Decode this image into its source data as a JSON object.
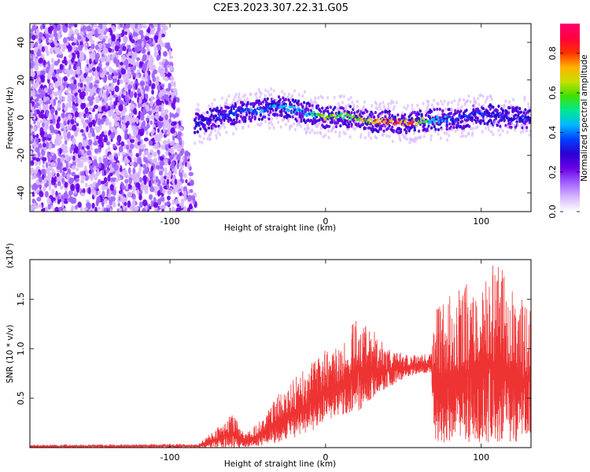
{
  "figure": {
    "title": "C2E3.2023.307.22.31.G05"
  },
  "colors": {
    "snr_line": "#ee3333",
    "frame": "#000000",
    "colormap": [
      "#ffffff",
      "#d8b8ff",
      "#a060ff",
      "#6a00e8",
      "#2a00d0",
      "#0040ff",
      "#00b8ff",
      "#00e890",
      "#40e000",
      "#c8e000",
      "#ffb000",
      "#ff3000",
      "#ff0040",
      "#ff0070"
    ]
  },
  "chart_data": [
    {
      "type": "heatmap",
      "name": "spectrogram",
      "xlabel": "Height of straight line (km)",
      "ylabel": "Frequency (Hz)",
      "xlim": [
        -190,
        132
      ],
      "ylim": [
        -50,
        50
      ],
      "xticks": [
        -100,
        0,
        100
      ],
      "xtick_labels": [
        "-100",
        "0",
        "100"
      ],
      "yticks": [
        -40,
        -20,
        0,
        20,
        40
      ],
      "ytick_labels": [
        "-40",
        "-20",
        "0",
        "20",
        "40"
      ],
      "noise_region_x": [
        -190,
        -82
      ],
      "noise_edge_x": [
        -103,
        -82
      ],
      "signal_track": [
        {
          "x": -82,
          "y": -3
        },
        {
          "x": -70,
          "y": 0
        },
        {
          "x": -55,
          "y": 3
        },
        {
          "x": -40,
          "y": 4
        },
        {
          "x": -30,
          "y": 6
        },
        {
          "x": -20,
          "y": 4
        },
        {
          "x": -10,
          "y": 2
        },
        {
          "x": 0,
          "y": 0
        },
        {
          "x": 10,
          "y": 1
        },
        {
          "x": 20,
          "y": 0
        },
        {
          "x": 30,
          "y": -2
        },
        {
          "x": 40,
          "y": -2
        },
        {
          "x": 50,
          "y": -3
        },
        {
          "x": 60,
          "y": -2
        },
        {
          "x": 70,
          "y": -1
        },
        {
          "x": 80,
          "y": -1
        },
        {
          "x": 90,
          "y": 0
        },
        {
          "x": 100,
          "y": 2
        },
        {
          "x": 110,
          "y": 1
        },
        {
          "x": 120,
          "y": 0
        },
        {
          "x": 132,
          "y": 0
        }
      ],
      "track_peak_amplitude": [
        {
          "x": -82,
          "amp": 0.35
        },
        {
          "x": -40,
          "amp": 0.45
        },
        {
          "x": -30,
          "amp": 0.5
        },
        {
          "x": -10,
          "amp": 0.45
        },
        {
          "x": 0,
          "amp": 0.75
        },
        {
          "x": 10,
          "amp": 0.6
        },
        {
          "x": 25,
          "amp": 0.75
        },
        {
          "x": 40,
          "amp": 0.85
        },
        {
          "x": 55,
          "amp": 0.9
        },
        {
          "x": 65,
          "amp": 0.6
        },
        {
          "x": 80,
          "amp": 0.4
        },
        {
          "x": 100,
          "amp": 0.35
        },
        {
          "x": 132,
          "amp": 0.35
        }
      ],
      "colorbar": {
        "label": "Normalized spectral amplitude",
        "lim": [
          0.0,
          0.95
        ],
        "ticks": [
          0.0,
          0.2,
          0.4,
          0.6,
          0.8
        ],
        "tick_labels": [
          "0.0",
          "0.2",
          "0.4",
          "0.6",
          "0.8"
        ]
      }
    },
    {
      "type": "line",
      "name": "snr",
      "xlabel": "Height of straight line (km)",
      "ylabel": "SNR (10 * v/v)",
      "y_multiplier": "(x10",
      "y_multiplier_exp": "4",
      "y_multiplier_close": ")",
      "xlim": [
        -190,
        132
      ],
      "ylim": [
        0,
        1.9
      ],
      "xticks": [
        -100,
        0,
        100
      ],
      "xtick_labels": [
        "-100",
        "0",
        "100"
      ],
      "yticks": [
        0.5,
        1.0,
        1.5
      ],
      "ytick_labels": [
        "0.5",
        "1.0",
        "1.5"
      ],
      "grid": false,
      "envelope": [
        {
          "x": -190,
          "lo": 0.0,
          "hi": 0.03
        },
        {
          "x": -82,
          "lo": 0.0,
          "hi": 0.04
        },
        {
          "x": -70,
          "lo": 0.0,
          "hi": 0.2
        },
        {
          "x": -60,
          "lo": 0.0,
          "hi": 0.35
        },
        {
          "x": -52,
          "lo": 0.0,
          "hi": 0.15
        },
        {
          "x": -40,
          "lo": 0.02,
          "hi": 0.3
        },
        {
          "x": -30,
          "lo": 0.05,
          "hi": 0.55
        },
        {
          "x": -20,
          "lo": 0.1,
          "hi": 0.7
        },
        {
          "x": -10,
          "lo": 0.15,
          "hi": 0.85
        },
        {
          "x": 0,
          "lo": 0.25,
          "hi": 1.0
        },
        {
          "x": 10,
          "lo": 0.3,
          "hi": 1.1
        },
        {
          "x": 20,
          "lo": 0.35,
          "hi": 1.3
        },
        {
          "x": 30,
          "lo": 0.5,
          "hi": 1.2
        },
        {
          "x": 40,
          "lo": 0.6,
          "hi": 1.0
        },
        {
          "x": 50,
          "lo": 0.7,
          "hi": 0.95
        },
        {
          "x": 60,
          "lo": 0.75,
          "hi": 0.95
        },
        {
          "x": 68,
          "lo": 0.75,
          "hi": 0.95
        },
        {
          "x": 70,
          "lo": 0.05,
          "hi": 1.4
        },
        {
          "x": 85,
          "lo": 0.05,
          "hi": 1.6
        },
        {
          "x": 100,
          "lo": 0.05,
          "hi": 1.75
        },
        {
          "x": 112,
          "lo": 0.05,
          "hi": 1.9
        },
        {
          "x": 120,
          "lo": 0.05,
          "hi": 1.6
        },
        {
          "x": 132,
          "lo": 0.1,
          "hi": 1.4
        }
      ]
    }
  ]
}
